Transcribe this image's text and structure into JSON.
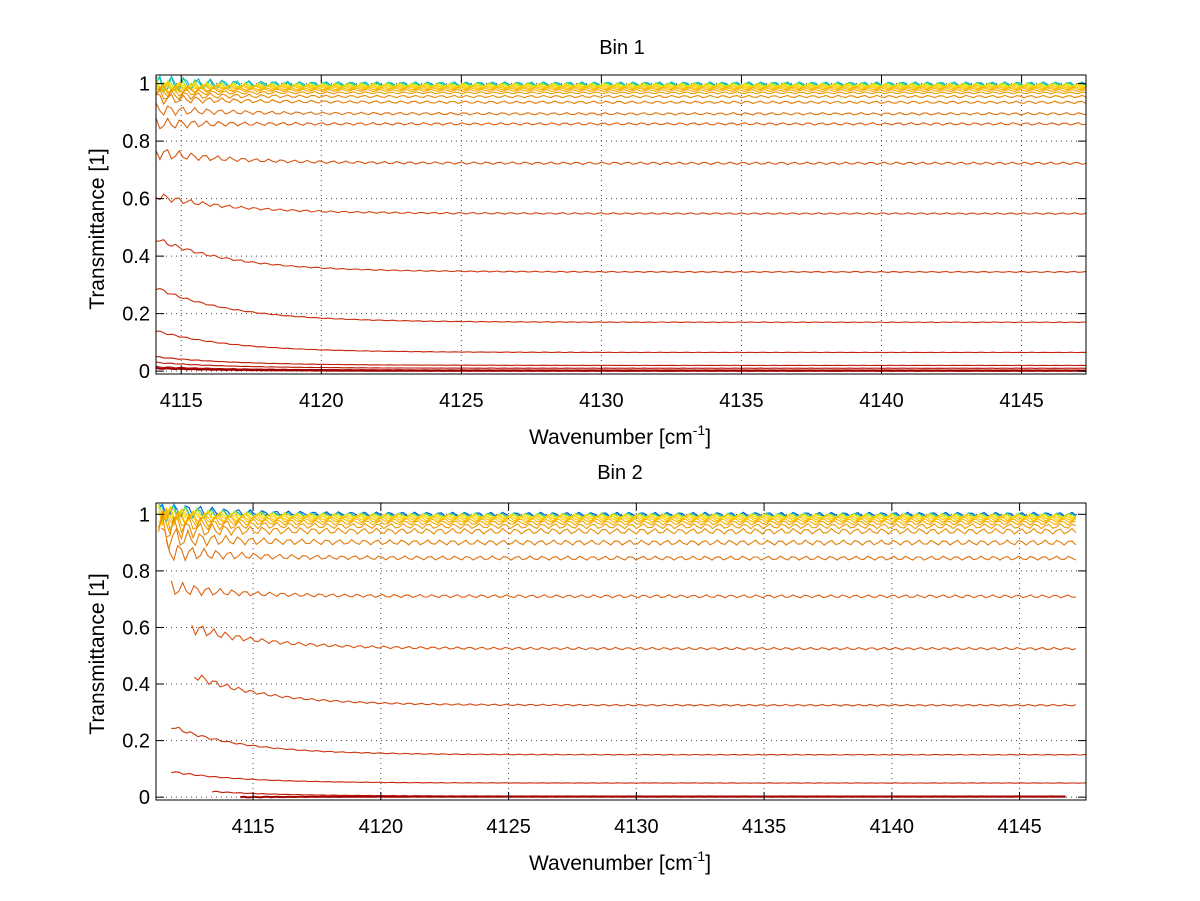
{
  "chart_data": [
    {
      "type": "line",
      "title": "Bin 1",
      "xlabel_main": "Wavenumber [cm",
      "xlabel_sup": "-1",
      "xlabel_close": "]",
      "ylabel": "Transmittance [1]",
      "xlim": [
        4114.1,
        4147.3
      ],
      "ylim": [
        -0.01,
        1.03
      ],
      "xticks": [
        4115,
        4120,
        4125,
        4130,
        4135,
        4140,
        4145
      ],
      "yticks": [
        0,
        0.2,
        0.4,
        0.6,
        0.8,
        1
      ],
      "ytick_labels": [
        "0",
        "0.2",
        "0.4",
        "0.6",
        "0.8",
        "1"
      ],
      "grid": true,
      "x_start": 4114.1,
      "x_end": 4147.3,
      "series": [
        {
          "start": 1.0,
          "level": 0.999,
          "osc": 0.02,
          "color": "#00b5d6"
        },
        {
          "start": 1.0,
          "level": 0.998,
          "osc": 0.018,
          "color": "#1fc8a0"
        },
        {
          "start": 0.99,
          "level": 0.996,
          "osc": 0.015,
          "color": "#b5e61d"
        },
        {
          "start": 0.99,
          "level": 0.993,
          "osc": 0.012,
          "color": "#ffe000"
        },
        {
          "start": 0.99,
          "level": 0.99,
          "osc": 0.01,
          "color": "#ffd000"
        },
        {
          "start": 0.99,
          "level": 0.986,
          "osc": 0.01,
          "color": "#ffc400"
        },
        {
          "start": 0.98,
          "level": 0.982,
          "osc": 0.01,
          "color": "#f7b800"
        },
        {
          "start": 0.98,
          "level": 0.976,
          "osc": 0.01,
          "color": "#f2a900"
        },
        {
          "start": 0.97,
          "level": 0.968,
          "osc": 0.01,
          "color": "#ee9a00"
        },
        {
          "start": 0.96,
          "level": 0.955,
          "osc": 0.012,
          "color": "#e88a00"
        },
        {
          "start": 0.95,
          "level": 0.935,
          "osc": 0.012,
          "color": "#e47c05"
        },
        {
          "start": 0.91,
          "level": 0.895,
          "osc": 0.012,
          "color": "#e07010"
        },
        {
          "start": 0.86,
          "level": 0.86,
          "osc": 0.012,
          "color": "#dc6210"
        },
        {
          "start": 0.76,
          "level": 0.723,
          "osc": 0.012,
          "color": "#d85510"
        },
        {
          "start": 0.61,
          "level": 0.548,
          "osc": 0.008,
          "color": "#d44810"
        },
        {
          "start": 0.46,
          "level": 0.345,
          "osc": 0.005,
          "color": "#d03a10"
        },
        {
          "start": 0.29,
          "level": 0.17,
          "osc": 0.003,
          "color": "#cc2e0c"
        },
        {
          "start": 0.14,
          "level": 0.065,
          "osc": 0.002,
          "color": "#c8240a"
        },
        {
          "start": 0.05,
          "level": 0.02,
          "osc": 0.001,
          "color": "#c01a08"
        },
        {
          "start": 0.03,
          "level": 0.01,
          "osc": 0.001,
          "color": "#b81406"
        },
        {
          "start": 0.015,
          "level": 0.004,
          "osc": 0.001,
          "color": "#b00e04"
        },
        {
          "start": 0.01,
          "level": 0.001,
          "osc": 0.001,
          "color": "#9e0000"
        }
      ]
    },
    {
      "type": "line",
      "title": "Bin 2",
      "xlabel_main": "Wavenumber [cm",
      "xlabel_sup": "-1",
      "xlabel_close": "]",
      "ylabel": "Transmittance [1]",
      "xlim": [
        4111.2,
        4147.6
      ],
      "ylim": [
        -0.01,
        1.04
      ],
      "xticks": [
        4115,
        4120,
        4125,
        4130,
        4135,
        4140,
        4145
      ],
      "yticks": [
        0,
        0.2,
        0.4,
        0.6,
        0.8,
        1
      ],
      "ytick_labels": [
        "0",
        "0.2",
        "0.4",
        "0.6",
        "0.8",
        "1"
      ],
      "grid": true,
      "series": [
        {
          "x_start": 4111.3,
          "x_end": 4147.2,
          "start": 1.02,
          "level": 1.0,
          "osc": 0.02,
          "color": "#0050d0"
        },
        {
          "x_start": 4111.3,
          "x_end": 4147.2,
          "start": 1.01,
          "level": 0.998,
          "osc": 0.02,
          "color": "#00b5d6"
        },
        {
          "x_start": 4111.3,
          "x_end": 4147.2,
          "start": 1.01,
          "level": 0.996,
          "osc": 0.018,
          "color": "#b5e61d"
        },
        {
          "x_start": 4111.3,
          "x_end": 4147.2,
          "start": 1.0,
          "level": 0.993,
          "osc": 0.018,
          "color": "#ffe000"
        },
        {
          "x_start": 4111.3,
          "x_end": 4147.2,
          "start": 1.0,
          "level": 0.989,
          "osc": 0.018,
          "color": "#ffd000"
        },
        {
          "x_start": 4111.3,
          "x_end": 4147.2,
          "start": 0.99,
          "level": 0.984,
          "osc": 0.02,
          "color": "#ffc400"
        },
        {
          "x_start": 4111.3,
          "x_end": 4147.2,
          "start": 0.99,
          "level": 0.978,
          "osc": 0.02,
          "color": "#f7b800"
        },
        {
          "x_start": 4111.3,
          "x_end": 4147.2,
          "start": 0.98,
          "level": 0.97,
          "osc": 0.022,
          "color": "#f2a900"
        },
        {
          "x_start": 4111.3,
          "x_end": 4147.2,
          "start": 0.97,
          "level": 0.958,
          "osc": 0.025,
          "color": "#ee9a00"
        },
        {
          "x_start": 4111.3,
          "x_end": 4147.2,
          "start": 0.95,
          "level": 0.94,
          "osc": 0.028,
          "color": "#e88a00"
        },
        {
          "x_start": 4111.4,
          "x_end": 4147.2,
          "start": 0.92,
          "level": 0.9,
          "osc": 0.025,
          "color": "#e47c05"
        },
        {
          "x_start": 4111.6,
          "x_end": 4147.2,
          "start": 0.87,
          "level": 0.845,
          "osc": 0.02,
          "color": "#e07010"
        },
        {
          "x_start": 4111.8,
          "x_end": 4147.2,
          "start": 0.74,
          "level": 0.71,
          "osc": 0.015,
          "color": "#dc6210"
        },
        {
          "x_start": 4112.6,
          "x_end": 4147.2,
          "start": 0.6,
          "level": 0.525,
          "osc": 0.012,
          "color": "#d85510"
        },
        {
          "x_start": 4112.7,
          "x_end": 4147.2,
          "start": 0.43,
          "level": 0.325,
          "osc": 0.008,
          "color": "#d44810"
        },
        {
          "x_start": 4111.8,
          "x_end": 4147.6,
          "start": 0.25,
          "level": 0.15,
          "osc": 0.004,
          "color": "#cc3510"
        },
        {
          "x_start": 4111.8,
          "x_end": 4147.6,
          "start": 0.09,
          "level": 0.05,
          "osc": 0.002,
          "color": "#c8280c"
        },
        {
          "x_start": 4113.4,
          "x_end": 4146.8,
          "start": 0.02,
          "level": 0.004,
          "osc": 0.001,
          "color": "#c01a08"
        },
        {
          "x_start": 4114.5,
          "x_end": 4146.8,
          "start": 0.0,
          "level": 0.002,
          "osc": 0.001,
          "color": "#a00000"
        }
      ]
    }
  ]
}
